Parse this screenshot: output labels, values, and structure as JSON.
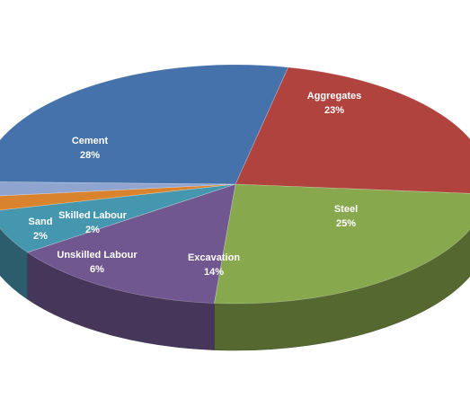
{
  "chart_data": {
    "type": "pie",
    "title": "",
    "slices": [
      {
        "name": "Aggregates",
        "value": 23,
        "pct_label": "23%",
        "color": "#B0433E"
      },
      {
        "name": "Steel",
        "value": 25,
        "pct_label": "25%",
        "color": "#87A84D"
      },
      {
        "name": "Excavation",
        "value": 14,
        "pct_label": "14%",
        "color": "#71578F"
      },
      {
        "name": "Unskilled Labour",
        "value": 6,
        "pct_label": "6%",
        "color": "#4596AF"
      },
      {
        "name": "Skilled Labour",
        "value": 2,
        "pct_label": "2%",
        "color": "#D9832E"
      },
      {
        "name": "Sand",
        "value": 2,
        "pct_label": "2%",
        "color": "#8FA4CF"
      },
      {
        "name": "Cement",
        "value": 28,
        "pct_label": "28%",
        "color": "#4672AC"
      }
    ]
  }
}
